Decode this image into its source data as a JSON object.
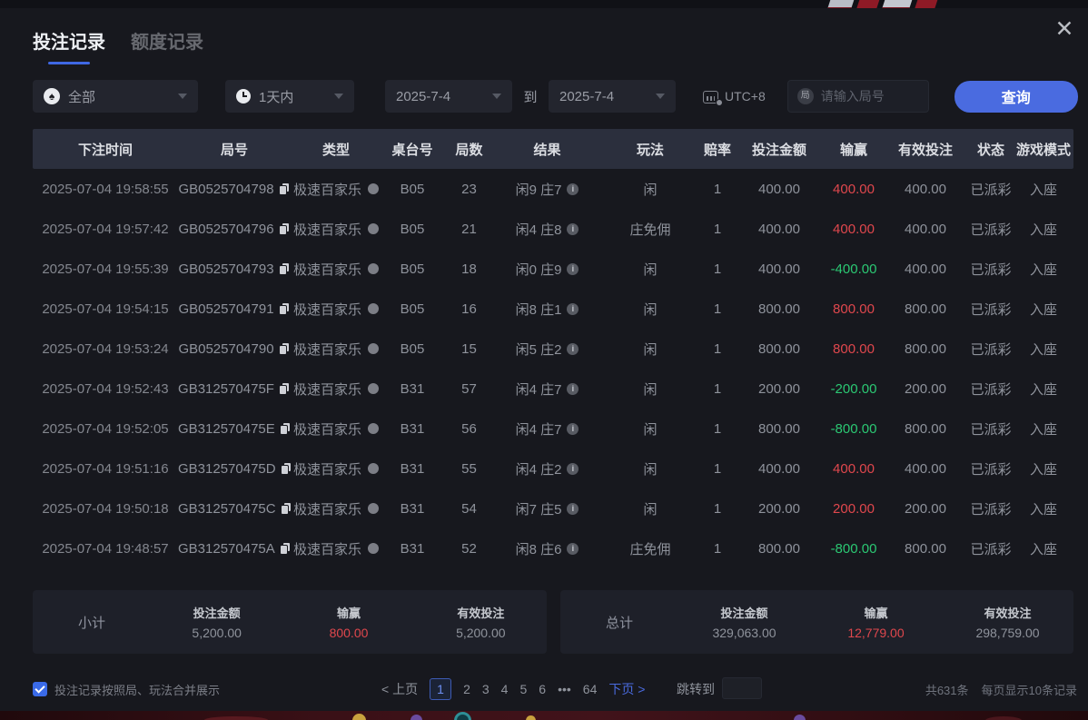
{
  "page": {
    "close_icon": "✕"
  },
  "tabs": {
    "bet_records": "投注记录",
    "quota_records": "额度记录"
  },
  "filters": {
    "game_type": {
      "icon": "♠",
      "value": "全部"
    },
    "time_range": {
      "value": "1天内"
    },
    "date_from": {
      "value": "2025-7-4"
    },
    "to_label": "到",
    "date_to": {
      "value": "2025-7-4"
    },
    "timezone": "UTC+8",
    "round_input": {
      "icon_text": "局",
      "placeholder": "请输入局号"
    },
    "query_button": "查询"
  },
  "table": {
    "headers": [
      "下注时间",
      "局号",
      "类型",
      "桌台号",
      "局数",
      "结果",
      "玩法",
      "赔率",
      "投注金额",
      "输赢",
      "有效投注",
      "状态",
      "游戏模式"
    ],
    "rows": [
      {
        "time": "2025-07-04 19:58:55",
        "round_id": "GB0525704798",
        "type": "极速百家乐",
        "table_no": "B05",
        "round_no": "23",
        "result": "闲9 庄7",
        "play": "闲",
        "odds": "1",
        "bet": "400.00",
        "win": "400.00",
        "win_color": "red",
        "valid": "400.00",
        "status": "已派彩",
        "mode": "入座"
      },
      {
        "time": "2025-07-04 19:57:42",
        "round_id": "GB0525704796",
        "type": "极速百家乐",
        "table_no": "B05",
        "round_no": "21",
        "result": "闲4 庄8",
        "play": "庄免佣",
        "odds": "1",
        "bet": "400.00",
        "win": "400.00",
        "win_color": "red",
        "valid": "400.00",
        "status": "已派彩",
        "mode": "入座"
      },
      {
        "time": "2025-07-04 19:55:39",
        "round_id": "GB0525704793",
        "type": "极速百家乐",
        "table_no": "B05",
        "round_no": "18",
        "result": "闲0 庄9",
        "play": "闲",
        "odds": "1",
        "bet": "400.00",
        "win": "-400.00",
        "win_color": "green",
        "valid": "400.00",
        "status": "已派彩",
        "mode": "入座"
      },
      {
        "time": "2025-07-04 19:54:15",
        "round_id": "GB0525704791",
        "type": "极速百家乐",
        "table_no": "B05",
        "round_no": "16",
        "result": "闲8 庄1",
        "play": "闲",
        "odds": "1",
        "bet": "800.00",
        "win": "800.00",
        "win_color": "red",
        "valid": "800.00",
        "status": "已派彩",
        "mode": "入座"
      },
      {
        "time": "2025-07-04 19:53:24",
        "round_id": "GB0525704790",
        "type": "极速百家乐",
        "table_no": "B05",
        "round_no": "15",
        "result": "闲5 庄2",
        "play": "闲",
        "odds": "1",
        "bet": "800.00",
        "win": "800.00",
        "win_color": "red",
        "valid": "800.00",
        "status": "已派彩",
        "mode": "入座"
      },
      {
        "time": "2025-07-04 19:52:43",
        "round_id": "GB312570475F",
        "type": "极速百家乐",
        "table_no": "B31",
        "round_no": "57",
        "result": "闲4 庄7",
        "play": "闲",
        "odds": "1",
        "bet": "200.00",
        "win": "-200.00",
        "win_color": "green",
        "valid": "200.00",
        "status": "已派彩",
        "mode": "入座"
      },
      {
        "time": "2025-07-04 19:52:05",
        "round_id": "GB312570475E",
        "type": "极速百家乐",
        "table_no": "B31",
        "round_no": "56",
        "result": "闲4 庄7",
        "play": "闲",
        "odds": "1",
        "bet": "800.00",
        "win": "-800.00",
        "win_color": "green",
        "valid": "800.00",
        "status": "已派彩",
        "mode": "入座"
      },
      {
        "time": "2025-07-04 19:51:16",
        "round_id": "GB312570475D",
        "type": "极速百家乐",
        "table_no": "B31",
        "round_no": "55",
        "result": "闲4 庄2",
        "play": "闲",
        "odds": "1",
        "bet": "400.00",
        "win": "400.00",
        "win_color": "red",
        "valid": "400.00",
        "status": "已派彩",
        "mode": "入座"
      },
      {
        "time": "2025-07-04 19:50:18",
        "round_id": "GB312570475C",
        "type": "极速百家乐",
        "table_no": "B31",
        "round_no": "54",
        "result": "闲7 庄5",
        "play": "闲",
        "odds": "1",
        "bet": "200.00",
        "win": "200.00",
        "win_color": "red",
        "valid": "200.00",
        "status": "已派彩",
        "mode": "入座"
      },
      {
        "time": "2025-07-04 19:48:57",
        "round_id": "GB312570475A",
        "type": "极速百家乐",
        "table_no": "B31",
        "round_no": "52",
        "result": "闲8 庄6",
        "play": "庄免佣",
        "odds": "1",
        "bet": "800.00",
        "win": "-800.00",
        "win_color": "green",
        "valid": "800.00",
        "status": "已派彩",
        "mode": "入座"
      }
    ]
  },
  "subtotal": {
    "label": "小计",
    "items": [
      {
        "label": "投注金额",
        "value": "5,200.00",
        "color": "normal"
      },
      {
        "label": "输赢",
        "value": "800.00",
        "color": "red"
      },
      {
        "label": "有效投注",
        "value": "5,200.00",
        "color": "normal"
      }
    ]
  },
  "grand_total": {
    "label": "总计",
    "items": [
      {
        "label": "投注金额",
        "value": "329,063.00",
        "color": "normal"
      },
      {
        "label": "输赢",
        "value": "12,779.00",
        "color": "red"
      },
      {
        "label": "有效投注",
        "value": "298,759.00",
        "color": "normal"
      }
    ]
  },
  "footer": {
    "merge_checkbox_label": "投注记录按照局、玩法合并展示",
    "pagination": {
      "prev": "< 上页",
      "pages": [
        "1",
        "2",
        "3",
        "4",
        "5",
        "6"
      ],
      "current": "1",
      "ellipsis": "•••",
      "last_page": "64",
      "next": "下页 >"
    },
    "jump_label": "跳转到",
    "records_total": "共631条",
    "per_page": "每页显示10条记录"
  },
  "colors": {
    "accent_blue": "#4a6be0",
    "win_red": "#e0474d",
    "loss_green": "#2bc873"
  }
}
